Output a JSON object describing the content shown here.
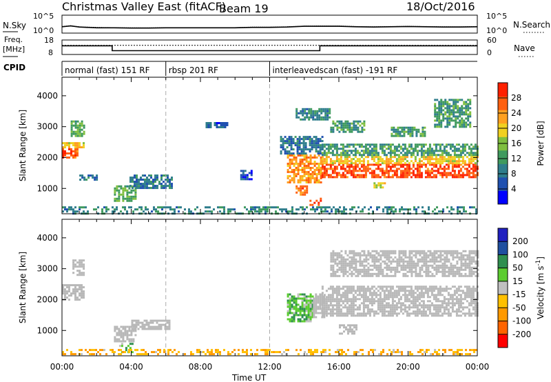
{
  "header": {
    "title": "Christmas Valley East (fitACF)",
    "beam_label": "Beam 19",
    "date": "18/Oct/2016"
  },
  "strip_labels": {
    "nsky": "N.Sky",
    "nsearch": "N.Search",
    "freq_line1": "Freq.",
    "freq_line2": "[MHz]",
    "nave": "Nave",
    "cpid": "CPID",
    "nsky_top": "10^5",
    "nsky_bottom": "10^0",
    "nsearch_top": "10^5",
    "nsearch_bottom": "10^0",
    "freq_top": "18",
    "freq_bottom": "8",
    "nave_top": "60",
    "nave_bottom": "0"
  },
  "cpid_segments": [
    {
      "label": "normal (fast) 151 RF",
      "start_hour": 0,
      "end_hour": 6
    },
    {
      "label": "rbsp 201 RF",
      "start_hour": 6,
      "end_hour": 12
    },
    {
      "label": "interleavedscan (fast) -191 RF",
      "start_hour": 12,
      "end_hour": 24
    }
  ],
  "xlabel": "Time UT",
  "x_ticks": [
    "00:00",
    "04:00",
    "08:00",
    "12:00",
    "16:00",
    "20:00",
    "00:00"
  ],
  "colors": {
    "power_scale": [
      "#0000ff",
      "#1f50b0",
      "#2e7d8c",
      "#3f9a5e",
      "#7fbf3f",
      "#f0d020",
      "#ffa020",
      "#ff6010",
      "#ff2000"
    ],
    "velocity_scale": [
      "#ff0000",
      "#ff6400",
      "#ff9900",
      "#ffc000",
      "#c0c0c0",
      "#5ccc30",
      "#2f8f4f",
      "#1f4fa0",
      "#2020c0"
    ],
    "ground_scatter": "#b8b8b8"
  },
  "chart_data": [
    {
      "type": "line",
      "title": "N.Sky / N.Search",
      "x_range_hours": [
        0,
        24
      ],
      "y_scale": "log",
      "ylim": [
        1,
        100000
      ],
      "series": [
        {
          "name": "N.Sky",
          "style": "solid",
          "x": [
            0,
            0.5,
            1,
            2,
            3,
            4,
            5,
            6,
            7,
            8,
            9,
            10,
            11,
            12,
            13,
            14,
            15,
            16,
            17,
            18,
            19,
            20,
            21,
            22,
            23,
            24
          ],
          "y": [
            60,
            100,
            50,
            30,
            30,
            25,
            25,
            30,
            30,
            30,
            30,
            30,
            40,
            40,
            50,
            80,
            80,
            80,
            60,
            50,
            60,
            70,
            60,
            50,
            50,
            60
          ]
        },
        {
          "name": "N.Search",
          "style": "dotted",
          "x": [
            0,
            0.5,
            1,
            2,
            3,
            4,
            5,
            6,
            7,
            8,
            9,
            10,
            11,
            12,
            13,
            14,
            15,
            16,
            17,
            18,
            19,
            20,
            21,
            22,
            23,
            24
          ],
          "y": [
            70,
            120,
            60,
            40,
            35,
            30,
            30,
            35,
            35,
            35,
            35,
            35,
            50,
            50,
            60,
            90,
            100,
            100,
            70,
            60,
            70,
            80,
            70,
            60,
            60,
            70
          ]
        }
      ]
    },
    {
      "type": "line",
      "title": "Freq. / Nave",
      "x_range_hours": [
        0,
        24
      ],
      "y_left_ticks": [
        8,
        18
      ],
      "y_right_ticks": [
        0,
        60
      ],
      "series": [
        {
          "name": "Freq.",
          "units": "MHz",
          "style": "solid",
          "x": [
            0,
            2.9,
            2.9,
            14.9,
            14.9,
            24
          ],
          "y": [
            14,
            14,
            10.6,
            10.6,
            14,
            14
          ]
        },
        {
          "name": "Nave",
          "style": "dotted",
          "x": [
            0,
            24
          ],
          "y": [
            38,
            38
          ]
        }
      ]
    },
    {
      "type": "heatmap",
      "title": "",
      "ylabel": "Slant Range [km]",
      "y_ticks": [
        1000,
        2000,
        3000,
        4000
      ],
      "ylim": [
        180,
        4600
      ],
      "x_range_hours": [
        0,
        24
      ],
      "colorbar_label": "Power [dB]",
      "colorbar_ticks": [
        4,
        8,
        12,
        16,
        20,
        24,
        28
      ],
      "colorbar_range": [
        0,
        32
      ],
      "regions": [
        {
          "t0": 0.0,
          "t1": 0.9,
          "r0": 2000,
          "r1": 2300,
          "value": 28
        },
        {
          "t0": 0.0,
          "t1": 1.2,
          "r0": 2300,
          "r1": 2500,
          "value": 20
        },
        {
          "t0": 0.5,
          "t1": 1.3,
          "r0": 2700,
          "r1": 3200,
          "value": 14
        },
        {
          "t0": 1.0,
          "t1": 2.0,
          "r0": 1250,
          "r1": 1450,
          "value": 8
        },
        {
          "t0": 3.0,
          "t1": 4.2,
          "r0": 600,
          "r1": 1100,
          "value": 14
        },
        {
          "t0": 3.9,
          "t1": 6.4,
          "r0": 1000,
          "r1": 1450,
          "value": 8
        },
        {
          "t0": 8.3,
          "t1": 9.5,
          "r0": 2950,
          "r1": 3150,
          "value": 6
        },
        {
          "t0": 10.3,
          "t1": 11.0,
          "r0": 1300,
          "r1": 1600,
          "value": 6
        },
        {
          "t0": 13.0,
          "t1": 15.0,
          "r0": 1200,
          "r1": 2100,
          "value": 24
        },
        {
          "t0": 12.6,
          "t1": 15.0,
          "r0": 2100,
          "r1": 2700,
          "value": 8
        },
        {
          "t0": 15.0,
          "t1": 24.0,
          "r0": 1350,
          "r1": 1800,
          "value": 28
        },
        {
          "t0": 15.0,
          "t1": 24.0,
          "r0": 1800,
          "r1": 2050,
          "value": 20
        },
        {
          "t0": 15.0,
          "t1": 24.0,
          "r0": 2050,
          "r1": 2450,
          "value": 12
        },
        {
          "t0": 13.5,
          "t1": 15.5,
          "r0": 3200,
          "r1": 3600,
          "value": 10
        },
        {
          "t0": 15.5,
          "t1": 17.5,
          "r0": 2800,
          "r1": 3200,
          "value": 12
        },
        {
          "t0": 19.0,
          "t1": 21.0,
          "r0": 2700,
          "r1": 3000,
          "value": 12
        },
        {
          "t0": 21.5,
          "t1": 23.6,
          "r0": 3000,
          "r1": 3900,
          "value": 12
        },
        {
          "t0": 13.5,
          "t1": 14.2,
          "r0": 800,
          "r1": 1100,
          "value": 26
        },
        {
          "t0": 14.3,
          "t1": 15.0,
          "r0": 450,
          "r1": 700,
          "value": 28
        },
        {
          "t0": 18.0,
          "t1": 18.7,
          "r0": 1000,
          "r1": 1200,
          "value": 18
        },
        {
          "t0": 0.0,
          "t1": 24.0,
          "r0": 200,
          "r1": 420,
          "value": 10
        }
      ]
    },
    {
      "type": "heatmap",
      "title": "",
      "ylabel": "Slant Range [km]",
      "xlabel": "Time UT",
      "y_ticks": [
        1000,
        2000,
        3000,
        4000
      ],
      "ylim": [
        180,
        4600
      ],
      "x_range_hours": [
        0,
        24
      ],
      "colorbar_label": "Velocity [m s^-1]",
      "colorbar_ticks": [
        -200,
        -100,
        -50,
        -15,
        15,
        50,
        100,
        200
      ],
      "colorbar_range": [
        -250,
        250
      ],
      "regions": [
        {
          "t0": 0.0,
          "t1": 1.2,
          "r0": 2000,
          "r1": 2500,
          "value": 0,
          "ground_scatter": true
        },
        {
          "t0": 0.6,
          "t1": 1.3,
          "r0": 2800,
          "r1": 3300,
          "value": 0,
          "ground_scatter": true
        },
        {
          "t0": 3.0,
          "t1": 4.2,
          "r0": 650,
          "r1": 1150,
          "value": 0,
          "ground_scatter": true
        },
        {
          "t0": 3.3,
          "t1": 4.1,
          "r0": 320,
          "r1": 600,
          "value": 60
        },
        {
          "t0": 4.0,
          "t1": 6.2,
          "r0": 1050,
          "r1": 1350,
          "value": 0,
          "ground_scatter": true
        },
        {
          "t0": 13.0,
          "t1": 14.5,
          "r0": 1300,
          "r1": 2200,
          "value": 60
        },
        {
          "t0": 14.5,
          "t1": 15.2,
          "r0": 1400,
          "r1": 2200,
          "value": 0,
          "ground_scatter": true
        },
        {
          "t0": 15.0,
          "t1": 24.0,
          "r0": 1450,
          "r1": 2450,
          "value": 0,
          "ground_scatter": true
        },
        {
          "t0": 15.5,
          "t1": 24.0,
          "r0": 2750,
          "r1": 3600,
          "value": 0,
          "ground_scatter": true
        },
        {
          "t0": 16.0,
          "t1": 17.0,
          "r0": 900,
          "r1": 1200,
          "value": 0,
          "ground_scatter": true
        },
        {
          "t0": 0.0,
          "t1": 24.0,
          "r0": 200,
          "r1": 400,
          "value": -70
        }
      ]
    }
  ]
}
